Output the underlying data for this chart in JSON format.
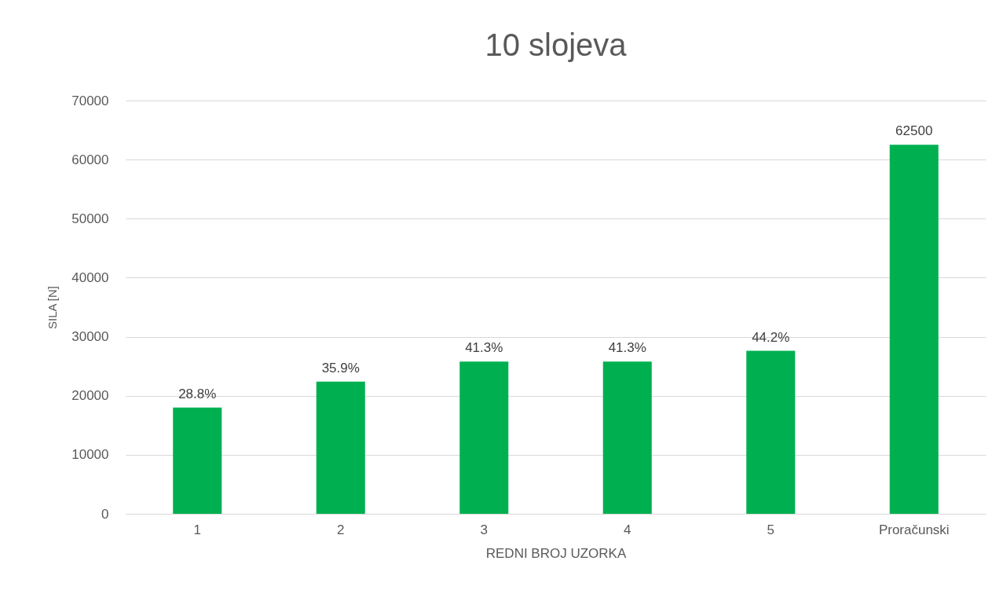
{
  "chart_data": {
    "type": "bar",
    "title": "10 slojeva",
    "xlabel": "REDNI BROJ UZORKA",
    "ylabel": "SILA [N]",
    "categories": [
      "1",
      "2",
      "3",
      "4",
      "5",
      "Proračunski"
    ],
    "values": [
      18000,
      22400,
      25800,
      25800,
      27600,
      62500
    ],
    "value_labels": [
      null,
      null,
      null,
      null,
      null,
      "62500"
    ],
    "annotations": [
      {
        "text": "28.8%",
        "x": "1",
        "y": 18000
      },
      {
        "text": "35.9%",
        "x": "2",
        "y": 22400
      },
      {
        "text": "41.3%",
        "x": "3",
        "y": 25800
      },
      {
        "text": "41.3%",
        "x": "4",
        "y": 25800
      },
      {
        "text": "44.2%",
        "x": "5",
        "y": 27600
      }
    ],
    "color": "#00b050",
    "ylim": [
      0,
      70000
    ],
    "yticks": [
      0,
      10000,
      20000,
      30000,
      40000,
      50000,
      60000,
      70000
    ],
    "grid": "y"
  }
}
